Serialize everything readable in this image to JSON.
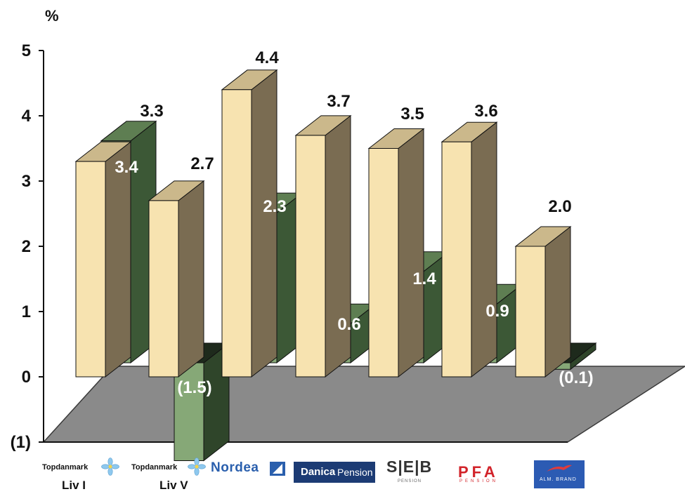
{
  "chart_data": {
    "type": "bar",
    "ylabel": "%",
    "ylim": [
      -1,
      5
    ],
    "yticks": [
      "(1)",
      "0",
      "1",
      "2",
      "3",
      "4",
      "5"
    ],
    "categories": [
      "Topdanmark Liv I",
      "Topdanmark Liv V",
      "Nordea",
      "Danica Pension",
      "SEB Pension",
      "PFA Pension",
      "Alm. Brand"
    ],
    "series": [
      {
        "name": "",
        "color": "#f5e3b3",
        "values": [
          3.3,
          2.7,
          4.4,
          3.7,
          3.5,
          3.6,
          2.0
        ],
        "labels": [
          "3.3",
          "2.7",
          "4.4",
          "3.7",
          "3.5",
          "3.6",
          "2.0"
        ]
      },
      {
        "name": "",
        "color": "#4e6a45",
        "values": [
          3.4,
          -1.5,
          2.3,
          0.6,
          1.4,
          0.9,
          -0.1
        ],
        "labels": [
          "3.4",
          "(1.5)",
          "2.3",
          "0.6",
          "1.4",
          "0.9",
          "(0.1)"
        ]
      }
    ],
    "grid": false,
    "legend": "none"
  },
  "logos": {
    "topdanmark1": {
      "name": "Topdanmark",
      "sub": "Liv I",
      "icon": "flower-icon"
    },
    "topdanmark2": {
      "name": "Topdanmark",
      "sub": "Liv V",
      "icon": "flower-icon"
    },
    "nordea": {
      "name": "Nordea"
    },
    "danica": {
      "name1": "Danica",
      "name2": "Pension"
    },
    "seb": {
      "name": "S|E|B",
      "sub": "PENSION"
    },
    "pfa": {
      "name": "PFA",
      "sub": "PENSION"
    },
    "almbrand": {
      "name": "ALM. BRAND"
    }
  }
}
